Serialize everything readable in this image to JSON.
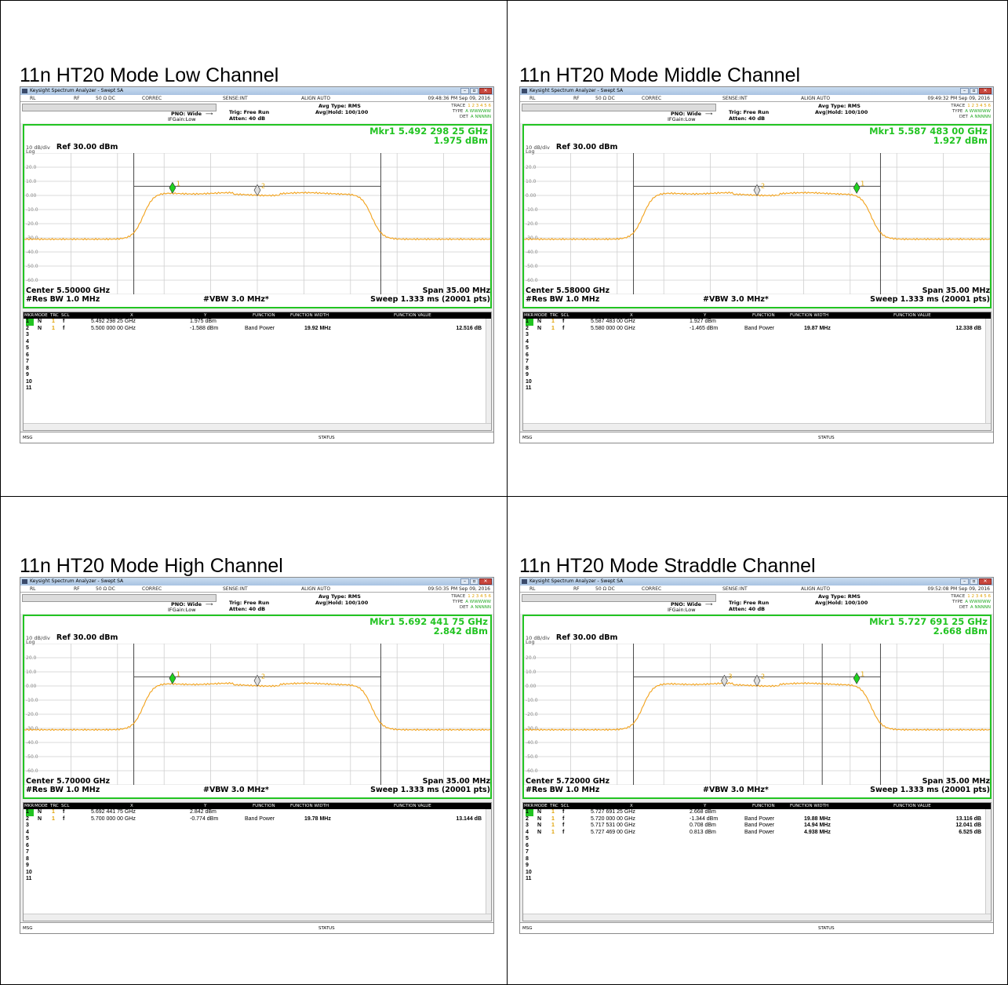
{
  "colors": {
    "trace": "#f2a21b",
    "frame": "#22c422",
    "marker_active": "#1fd11f",
    "marker": "#cccccc"
  },
  "common": {
    "app_title": "Keysight Spectrum Analyzer - Swept SA",
    "status_rl": "RL",
    "status_rf": "RF",
    "status_ohm": "50 Ω  DC",
    "status_correc": "CORREC",
    "status_sense": "SENSE:INT",
    "status_align": "ALIGN AUTO",
    "pno": "PNO: Wide",
    "ifgain": "IFGain:Low",
    "trig": "Trig: Free Run",
    "atten": "Atten: 40 dB",
    "avg_type": "Avg Type: RMS",
    "avg_hold": "Avg|Hold: 100/100",
    "trace_label": "TRACE",
    "trace_vals": "1 2 3 4 5 6",
    "type_label": "TYPE",
    "type_vals": "A WWWWW",
    "det_label": "DET",
    "det_vals": "A NNNNN",
    "scale": "10 dB/div",
    "log": "Log",
    "ref": "Ref 30.00 dBm",
    "span": "Span 35.00 MHz",
    "resbw": "#Res BW 1.0 MHz",
    "vbw": "#VBW 3.0 MHz*",
    "sweep": "Sweep  1.333 ms (20001 pts)",
    "yticks": [
      "20.0",
      "10.0",
      "0.00",
      "-10.0",
      "-20.0",
      "-30.0",
      "-40.0",
      "-50.0",
      "-60.0"
    ],
    "col_mkr": "MKR",
    "col_mode": "MODE",
    "col_trc": "TRC",
    "col_scl": "SCL",
    "col_x": "X",
    "col_y": "Y",
    "col_function": "FUNCTION",
    "col_fwidth": "FUNCTION WIDTH",
    "col_fvalue": "FUNCTION VALUE",
    "msg": "MSG",
    "status": "STATUS",
    "win_min": "–",
    "win_max": "▫",
    "win_close": "✕",
    "row_numbers": [
      "1",
      "2",
      "3",
      "4",
      "5",
      "6",
      "7",
      "8",
      "9",
      "10",
      "11"
    ]
  },
  "panels": [
    {
      "title": "11n HT20 Mode Low Channel",
      "timestamp": "09:48:36 PM Sep 09, 2016",
      "mkr_freq": "Mkr1 5.492 298 25 GHz",
      "mkr_level": "1.975 dBm",
      "center": "Center 5.50000 GHz",
      "rows": [
        {
          "n": "1",
          "mode": "N",
          "trc": "1",
          "scl": "f",
          "x": "5.492 298 25 GHz",
          "y": "1.975 dBm",
          "fn": "",
          "fw": "",
          "fv": ""
        },
        {
          "n": "2",
          "mode": "N",
          "trc": "1",
          "scl": "f",
          "x": "5.500 000 00 GHz",
          "y": "-1.588 dBm",
          "fn": "Band Power",
          "fw": "19.92 MHz",
          "fv": "12.516 dB"
        }
      ]
    },
    {
      "title": "11n HT20 Mode Middle Channel",
      "timestamp": "09:49:32 PM Sep 09, 2016",
      "mkr_freq": "Mkr1 5.587 483 00 GHz",
      "mkr_level": "1.927 dBm",
      "center": "Center 5.58000 GHz",
      "rows": [
        {
          "n": "1",
          "mode": "N",
          "trc": "1",
          "scl": "f",
          "x": "5.587 483 00 GHz",
          "y": "1.927 dBm",
          "fn": "",
          "fw": "",
          "fv": ""
        },
        {
          "n": "2",
          "mode": "N",
          "trc": "1",
          "scl": "f",
          "x": "5.580 000 00 GHz",
          "y": "-1.465 dBm",
          "fn": "Band Power",
          "fw": "19.87 MHz",
          "fv": "12.338 dB"
        }
      ]
    },
    {
      "title": "11n HT20 Mode High Channel",
      "timestamp": "09:50:35 PM Sep 09, 2016",
      "mkr_freq": "Mkr1 5.692 441 75 GHz",
      "mkr_level": "2.842 dBm",
      "center": "Center 5.70000 GHz",
      "rows": [
        {
          "n": "1",
          "mode": "N",
          "trc": "1",
          "scl": "f",
          "x": "5.692 441 75 GHz",
          "y": "2.842 dBm",
          "fn": "",
          "fw": "",
          "fv": ""
        },
        {
          "n": "2",
          "mode": "N",
          "trc": "1",
          "scl": "f",
          "x": "5.700 000 00 GHz",
          "y": "-0.774 dBm",
          "fn": "Band Power",
          "fw": "19.78 MHz",
          "fv": "13.144 dB"
        }
      ]
    },
    {
      "title": "11n HT20 Mode Straddle Channel",
      "timestamp": "09:52:08 PM Sep 09, 2016",
      "mkr_freq": "Mkr1 5.727 691 25 GHz",
      "mkr_level": "2.668 dBm",
      "center": "Center 5.72000 GHz",
      "rows": [
        {
          "n": "1",
          "mode": "N",
          "trc": "1",
          "scl": "f",
          "x": "5.727 691 25 GHz",
          "y": "2.668 dBm",
          "fn": "",
          "fw": "",
          "fv": ""
        },
        {
          "n": "2",
          "mode": "N",
          "trc": "1",
          "scl": "f",
          "x": "5.720 000 00 GHz",
          "y": "-1.344 dBm",
          "fn": "Band Power",
          "fw": "19.88 MHz",
          "fv": "13.116 dB"
        },
        {
          "n": "3",
          "mode": "N",
          "trc": "1",
          "scl": "f",
          "x": "5.717 531 00 GHz",
          "y": "0.708 dBm",
          "fn": "Band Power",
          "fw": "14.94 MHz",
          "fv": "12.041 dB"
        },
        {
          "n": "4",
          "mode": "N",
          "trc": "1",
          "scl": "f",
          "x": "5.727 469 00 GHz",
          "y": "0.813 dBm",
          "fn": "Band Power",
          "fw": "4.938 MHz",
          "fv": "6.525 dB"
        }
      ]
    }
  ]
}
